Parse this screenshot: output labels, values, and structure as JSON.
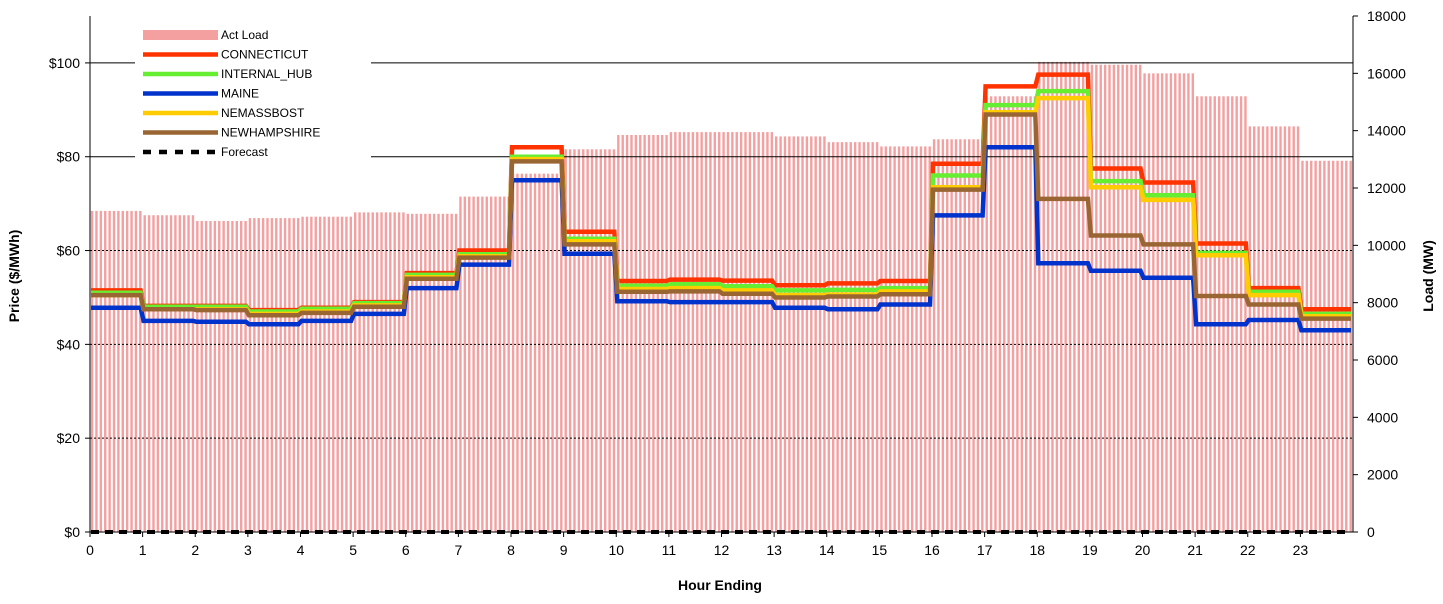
{
  "chart_data": {
    "type": "line",
    "xlabel": "Hour Ending",
    "ylabel": "Price ($/MWh)",
    "y2label": "Load (MW)",
    "xlim": [
      0,
      24
    ],
    "ylim": [
      0,
      110
    ],
    "y2lim": [
      0,
      18000
    ],
    "x_ticks": [
      "0",
      "1",
      "2",
      "3",
      "4",
      "5",
      "6",
      "7",
      "8",
      "9",
      "10",
      "11",
      "12",
      "13",
      "14",
      "15",
      "16",
      "17",
      "18",
      "19",
      "20",
      "21",
      "22",
      "23"
    ],
    "y_ticks": [
      "$0",
      "$20",
      "$40",
      "$60",
      "$80",
      "$100"
    ],
    "y_tick_values": [
      0,
      20,
      40,
      60,
      80,
      100
    ],
    "y2_ticks": [
      "0",
      "2000",
      "4000",
      "6000",
      "8000",
      "10000",
      "12000",
      "14000",
      "16000",
      "18000"
    ],
    "y2_tick_values": [
      0,
      2000,
      4000,
      6000,
      8000,
      10000,
      12000,
      14000,
      16000,
      18000
    ],
    "grid": "horizontal lines at major price ticks",
    "legend_position": "top-left",
    "load": {
      "name": "Act Load",
      "color": "#f4a0a0",
      "hourly": [
        11200,
        11050,
        10850,
        10950,
        11000,
        11150,
        11100,
        11700,
        12500,
        13350,
        13850,
        13950,
        13950,
        13800,
        13600,
        13450,
        13700,
        15200,
        16400,
        16300,
        16000,
        15200,
        14150,
        12950
      ]
    },
    "series": [
      {
        "name": "CONNECTICUT",
        "color": "#ff3300",
        "values": [
          51.5,
          48.2,
          48.2,
          47.3,
          47.8,
          49,
          55.2,
          60,
          82,
          64,
          53.5,
          53.8,
          53.6,
          52.6,
          53,
          53.5,
          78.5,
          95,
          97.5,
          77.5,
          74.5,
          61.5,
          52,
          47.5
        ]
      },
      {
        "name": "INTERNAL_HUB",
        "color": "#66ee33",
        "values": [
          51,
          48,
          48,
          47,
          47.6,
          48.8,
          54.8,
          59.2,
          80,
          62.5,
          52.5,
          52.8,
          52.4,
          51.5,
          51.6,
          52,
          76,
          91,
          94,
          74.8,
          71.8,
          59.5,
          51.2,
          46.5
        ]
      },
      {
        "name": "MAINE",
        "color": "#0033cc",
        "values": [
          47.8,
          45,
          44.8,
          44.3,
          45,
          46.5,
          52,
          57,
          75,
          59.3,
          49.2,
          49,
          49,
          47.8,
          47.5,
          48.5,
          67.5,
          82,
          57.3,
          55.7,
          54.2,
          44.3,
          45.2,
          43
        ]
      },
      {
        "name": "NEMASSBOST",
        "color": "#ffcc00",
        "values": [
          50.5,
          47.5,
          47.5,
          46.5,
          47,
          48.3,
          54.3,
          58.8,
          79.5,
          62,
          51.8,
          52,
          51.5,
          50.5,
          50.6,
          51.3,
          73.5,
          89.5,
          92.5,
          73.5,
          70.8,
          59,
          50.5,
          46
        ]
      },
      {
        "name": "NEWHAMPSHIRE",
        "color": "#996633",
        "values": [
          50.5,
          47.5,
          47.3,
          46.2,
          46.7,
          48,
          54,
          58.5,
          79,
          61.3,
          51.2,
          51.3,
          50.8,
          50,
          50.2,
          50.7,
          73,
          89,
          71,
          63.2,
          61.3,
          50.3,
          48.5,
          45.5
        ]
      },
      {
        "name": "Forecast",
        "color": "#000000",
        "dashed": true,
        "values": [
          0,
          0,
          0,
          0,
          0,
          0,
          0,
          0,
          0,
          0,
          0,
          0,
          0,
          0,
          0,
          0,
          0,
          0,
          0,
          0,
          0,
          0,
          0,
          0
        ]
      }
    ]
  }
}
